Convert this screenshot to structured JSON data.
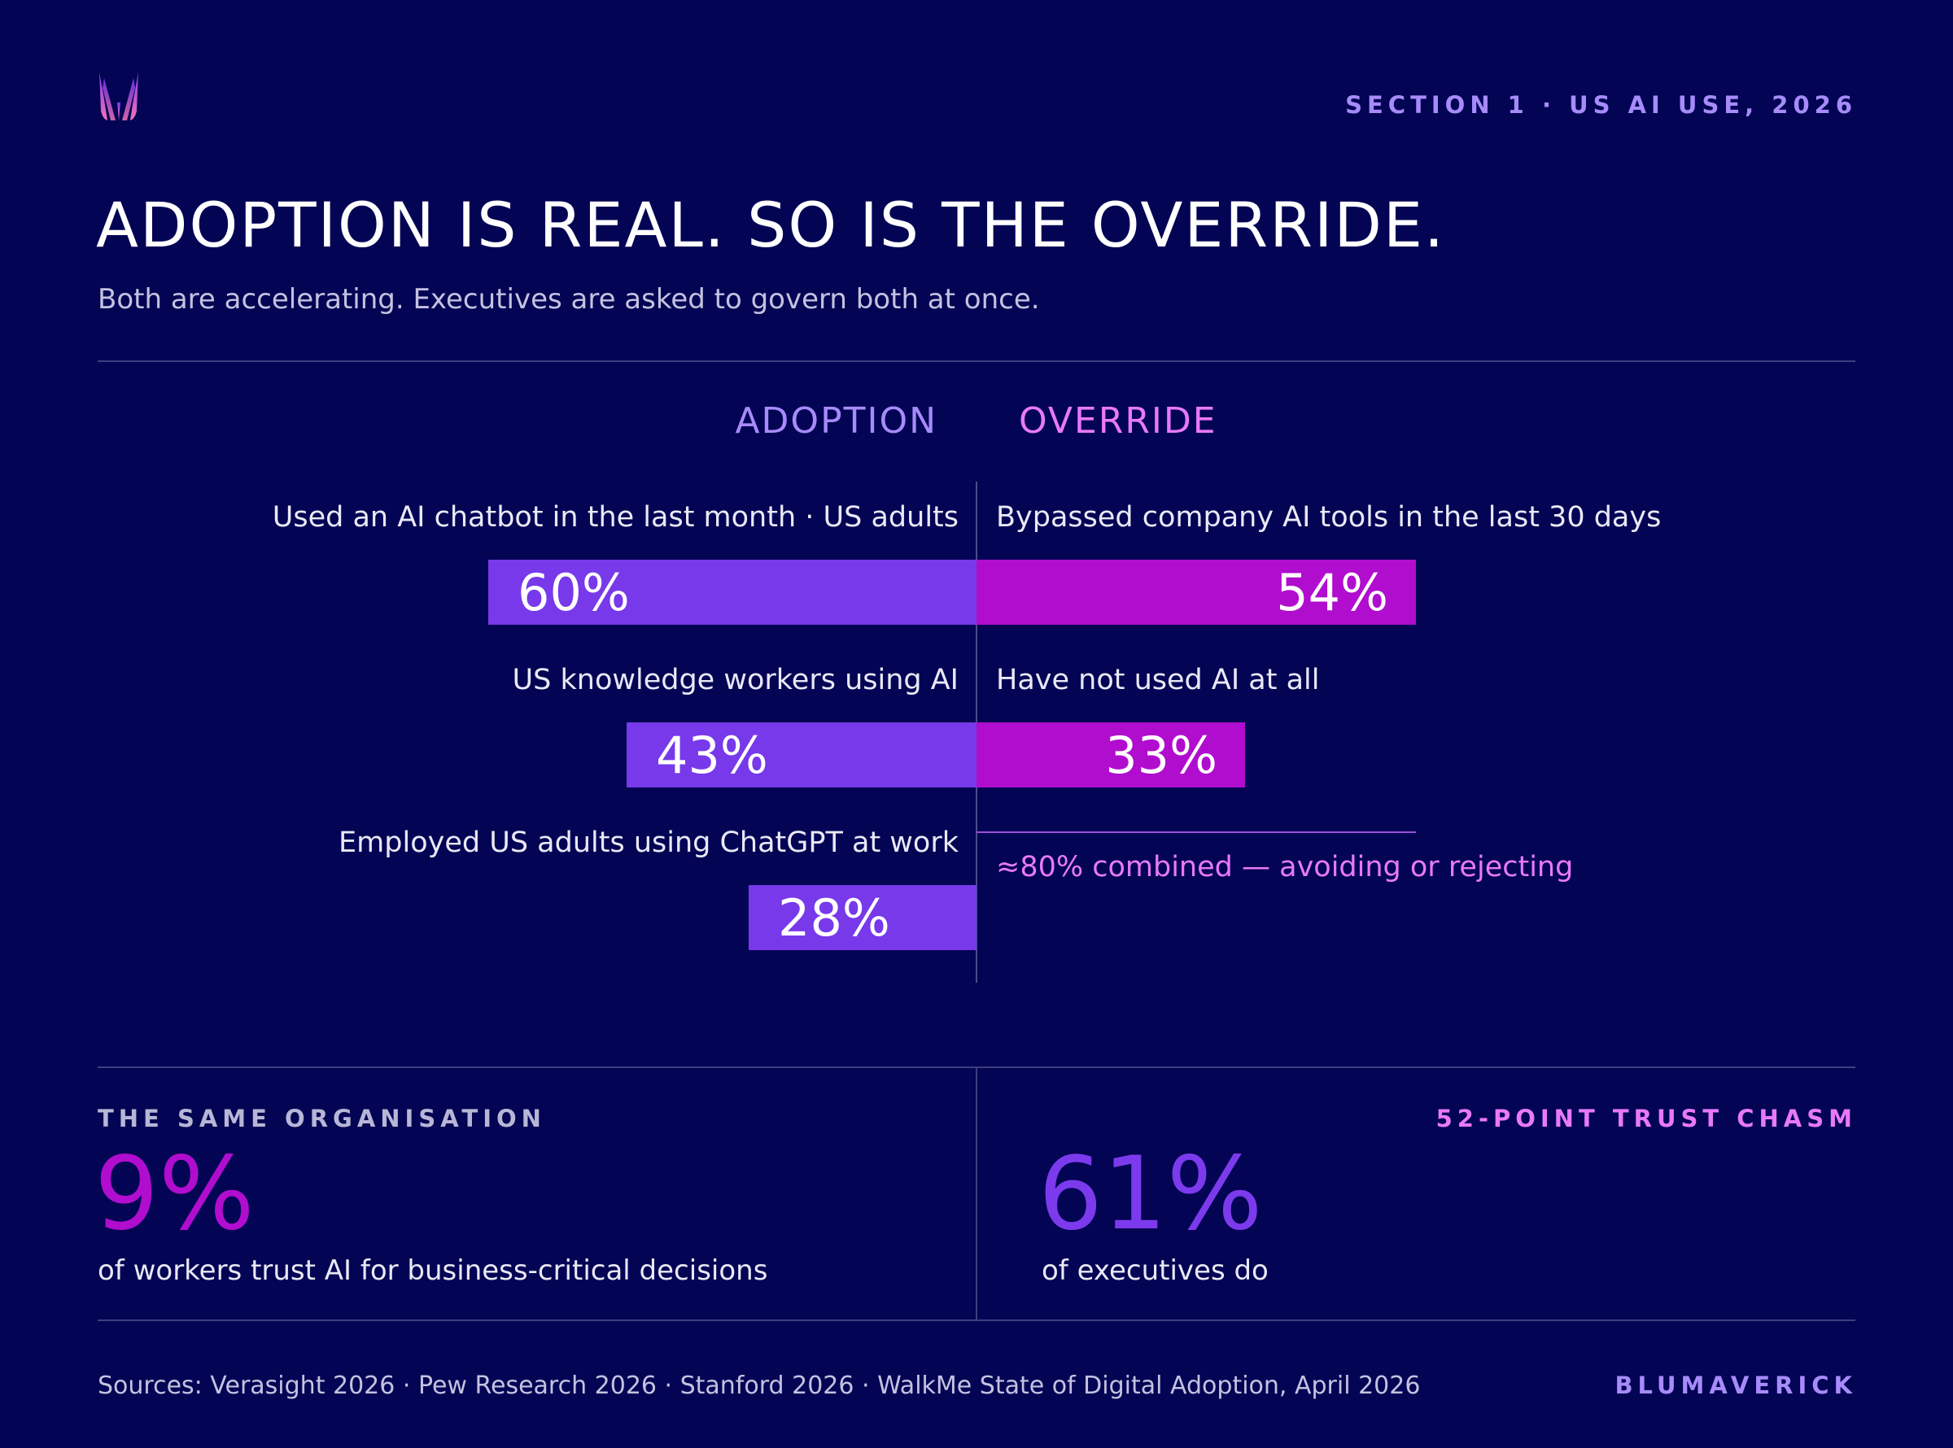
{
  "header": {
    "section_label": "SECTION 1 · US AI USE, 2026",
    "title": "ADOPTION IS REAL. SO IS THE OVERRIDE.",
    "subtitle": "Both are accelerating. Executives are asked to govern both at once."
  },
  "colors": {
    "background": "#030454",
    "adoption": "#7739ea",
    "override": "#b00dce",
    "adoption_text": "#a78bfa",
    "override_text": "#e879f9"
  },
  "chart_data": {
    "type": "bar",
    "orientation": "horizontal-diverging",
    "scale_max_percent": 60,
    "columns": {
      "left": "ADOPTION",
      "right": "OVERRIDE"
    },
    "series": [
      {
        "name": "ADOPTION",
        "items": [
          {
            "label": "Used an AI chatbot in the last month · US adults",
            "value": 60,
            "display": "60%"
          },
          {
            "label": "US knowledge workers using AI",
            "value": 43,
            "display": "43%"
          },
          {
            "label": "Employed US adults using ChatGPT at work",
            "value": 28,
            "display": "28%"
          }
        ]
      },
      {
        "name": "OVERRIDE",
        "items": [
          {
            "label": "Bypassed company AI tools in the last 30 days",
            "value": 54,
            "display": "54%"
          },
          {
            "label": "Have not used AI at all",
            "value": 33,
            "display": "33%"
          }
        ]
      }
    ],
    "annotation": "≈80% combined — avoiding or rejecting"
  },
  "stats": {
    "left": {
      "kicker": "THE SAME ORGANISATION",
      "value": "9%",
      "caption": "of workers trust AI for business-critical decisions"
    },
    "right": {
      "kicker": "52-POINT TRUST CHASM",
      "value": "61%",
      "caption": "of executives do"
    }
  },
  "footer": {
    "sources": "Sources: Verasight 2026 · Pew Research 2026 · Stanford 2026 · WalkMe State of Digital Adoption, April 2026",
    "brand": "BLUMAVERICK"
  }
}
